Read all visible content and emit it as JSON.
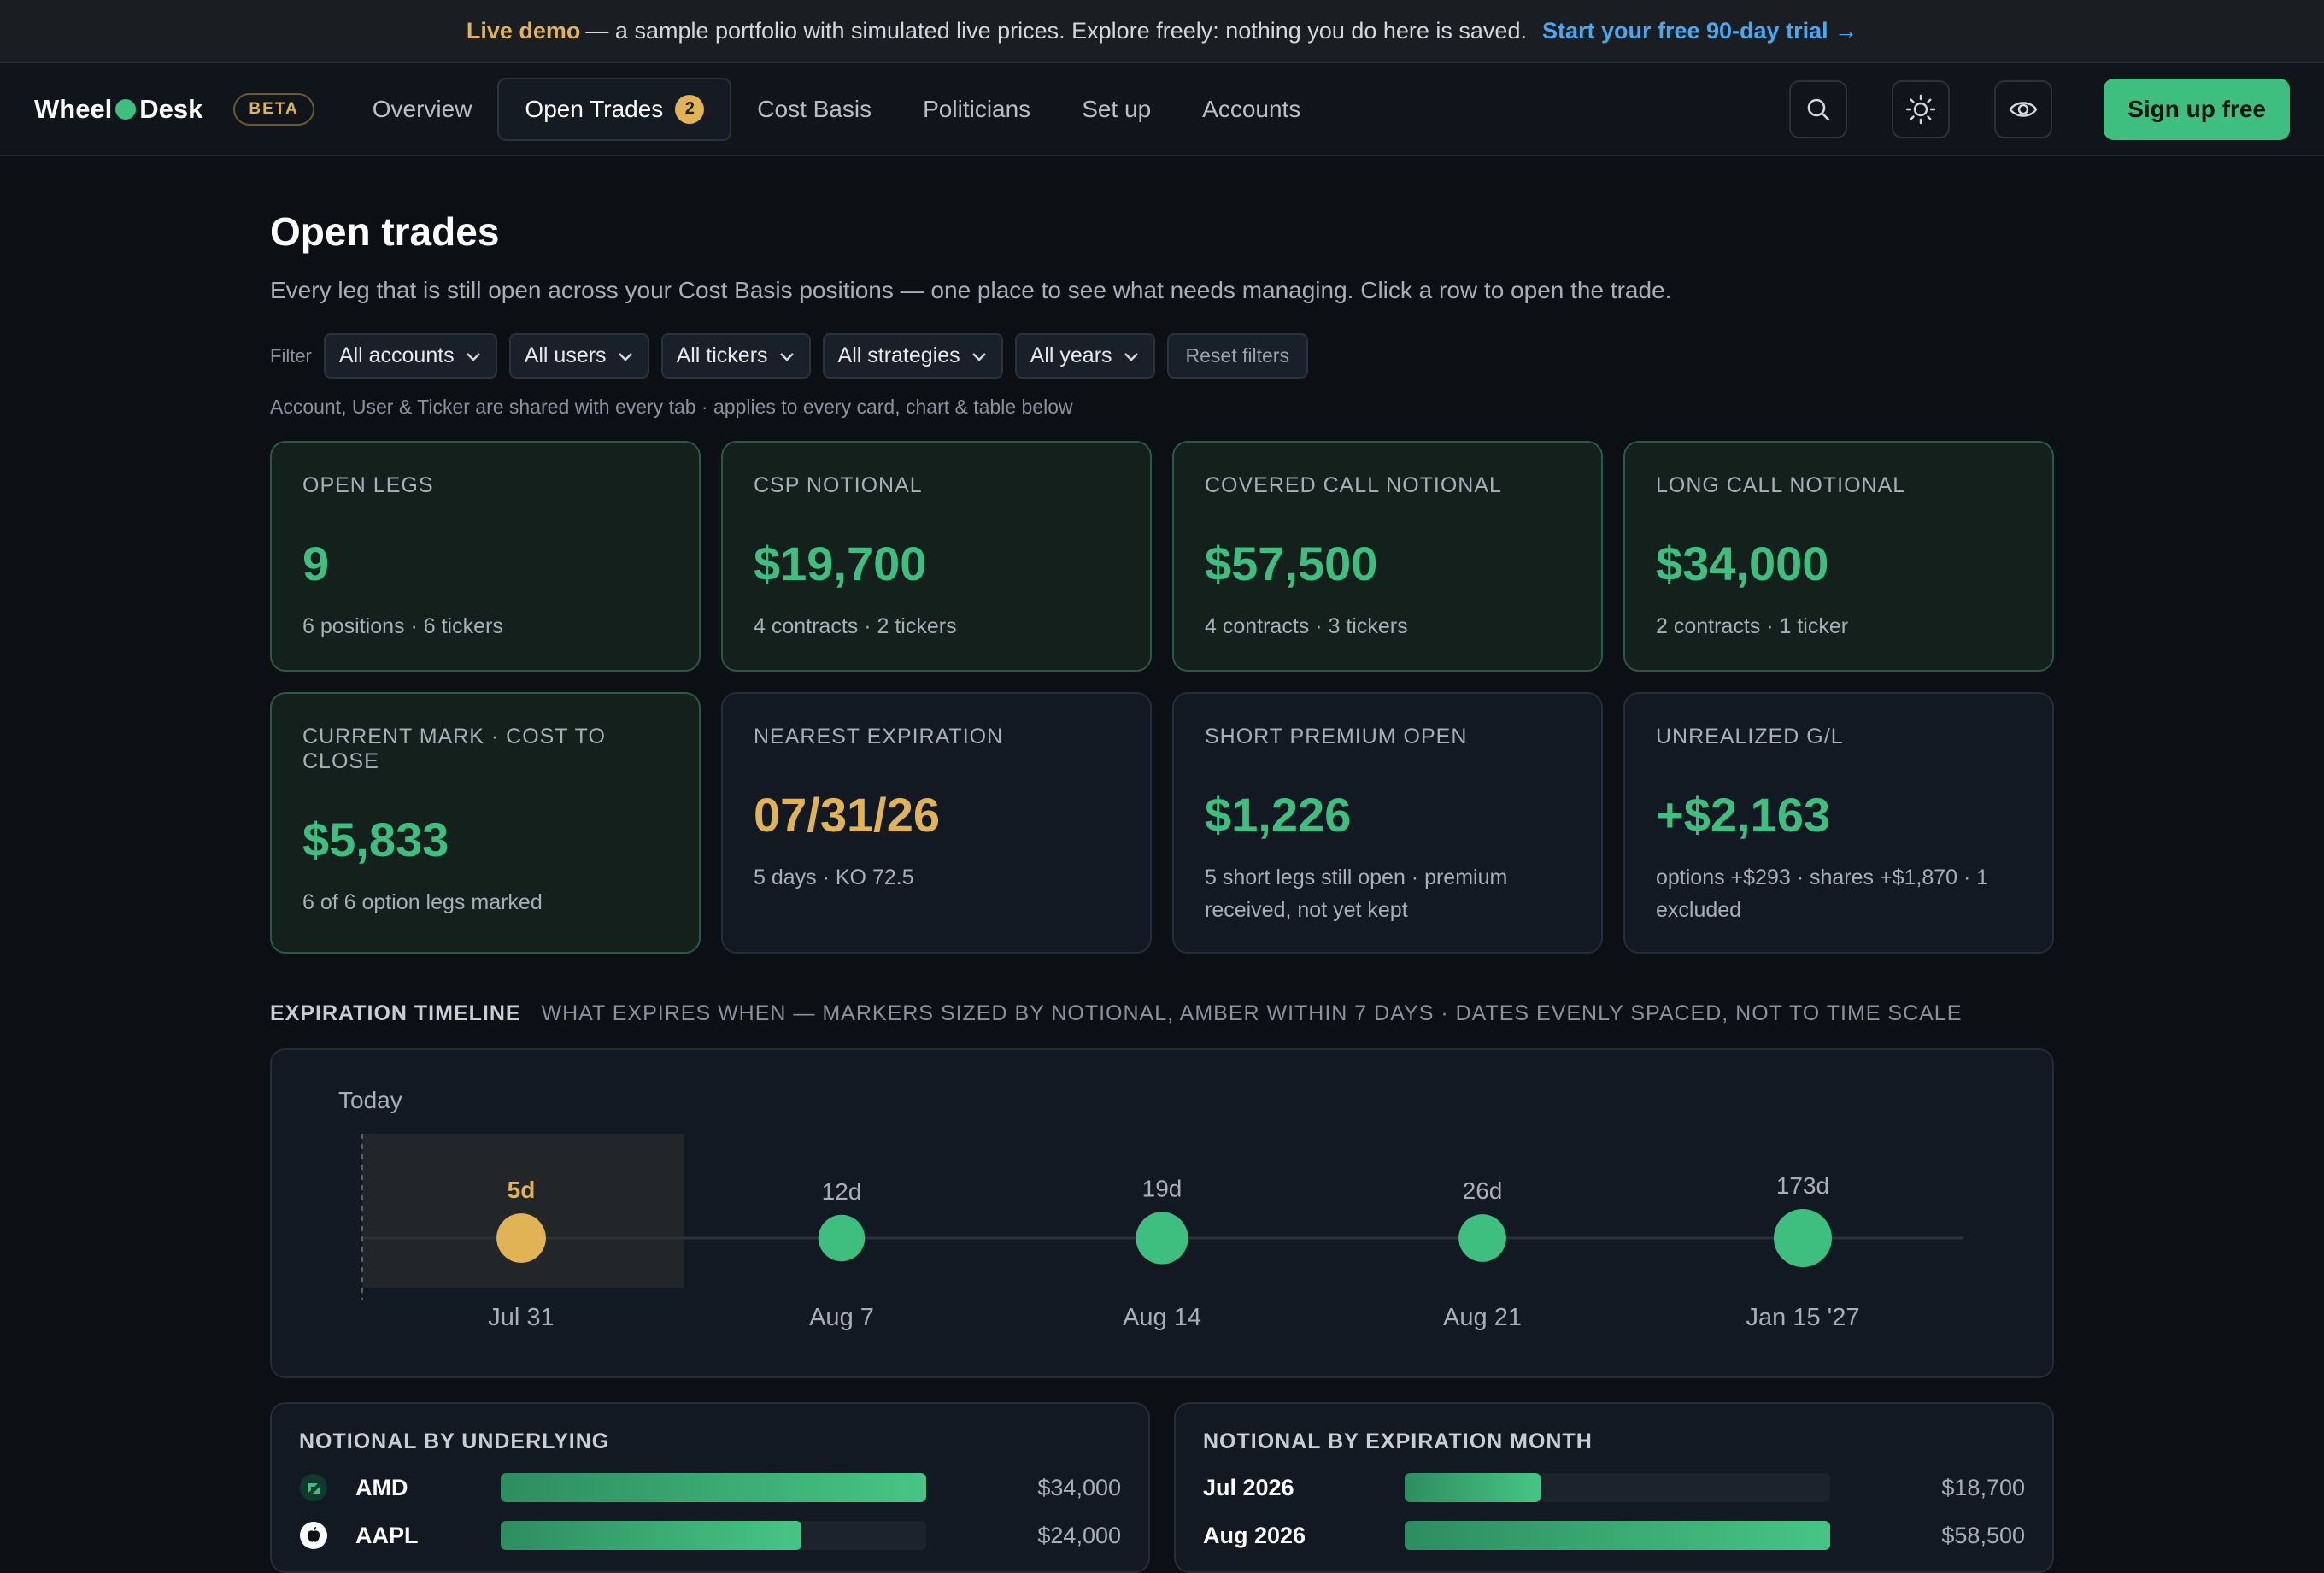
{
  "banner": {
    "live": "Live demo",
    "message": "— a sample portfolio with simulated live prices. Explore freely: nothing you do here is saved.",
    "cta": "Start your free 90-day trial →"
  },
  "nav": {
    "brand_left": "Wheel",
    "brand_right": "Desk",
    "beta": "BETA",
    "links": [
      "Overview",
      "Open Trades",
      "Cost Basis",
      "Politicians",
      "Set up",
      "Accounts"
    ],
    "open_trades_count": "2",
    "signup": "Sign up free",
    "icons": [
      "search-icon",
      "sun-icon",
      "eye-icon"
    ]
  },
  "page": {
    "title": "Open trades",
    "subtitle": "Every leg that is still open across your Cost Basis positions — one place to see what needs managing. Click a row to open the trade."
  },
  "filters": {
    "label": "Filter",
    "selects": [
      "All accounts",
      "All users",
      "All tickers",
      "All strategies",
      "All years"
    ],
    "reset": "Reset filters",
    "note": "Account, User & Ticker are shared with every tab · applies to every card, chart & table below"
  },
  "cards": [
    {
      "label": "OPEN LEGS",
      "value": "9",
      "sub": "6 positions · 6 tickers"
    },
    {
      "label": "CSP NOTIONAL",
      "value": "$19,700",
      "sub": "4 contracts · 2 tickers"
    },
    {
      "label": "COVERED CALL NOTIONAL",
      "value": "$57,500",
      "sub": "4 contracts · 3 tickers"
    },
    {
      "label": "LONG CALL NOTIONAL",
      "value": "$34,000",
      "sub": "2 contracts · 1 ticker"
    },
    {
      "label": "CURRENT MARK · COST TO CLOSE",
      "value": "$5,833",
      "sub": "6 of 6 option legs marked"
    },
    {
      "label": "NEAREST EXPIRATION",
      "value": "07/31/26",
      "sub": "5 days · KO 72.5"
    },
    {
      "label": "SHORT PREMIUM OPEN",
      "value": "$1,226",
      "sub": "5 short legs still open · premium received, not yet kept"
    },
    {
      "label": "UNREALIZED G/L",
      "value": "+$2,163",
      "sub": "options +$293 · shares +$1,870 · 1 excluded"
    }
  ],
  "timeline": {
    "title": "EXPIRATION TIMELINE",
    "desc": "WHAT EXPIRES WHEN — MARKERS SIZED BY NOTIONAL, AMBER WITHIN 7 DAYS · DATES EVENLY SPACED, NOT TO TIME SCALE",
    "today_label": "Today",
    "markers": [
      {
        "days": "5d",
        "date": "Jul 31",
        "amber": true,
        "size": 0.85
      },
      {
        "days": "12d",
        "date": "Aug 7",
        "amber": false,
        "size": 0.8
      },
      {
        "days": "19d",
        "date": "Aug 14",
        "amber": false,
        "size": 0.9
      },
      {
        "days": "26d",
        "date": "Aug 21",
        "amber": false,
        "size": 0.82
      },
      {
        "days": "173d",
        "date": "Jan 15 '27",
        "amber": false,
        "size": 1.0
      }
    ],
    "colors": {
      "amber": "#e2b354",
      "green": "#3fbf7f"
    }
  },
  "underlying": {
    "title": "NOTIONAL BY UNDERLYING",
    "rows": [
      {
        "name": "AMD",
        "amount": "$34,000",
        "value": 34000,
        "icon": "amd-logo-icon"
      },
      {
        "name": "AAPL",
        "amount": "$24,000",
        "value": 24000,
        "icon": "apple-logo-icon"
      }
    ],
    "max": 34000
  },
  "by_month": {
    "title": "NOTIONAL BY EXPIRATION MONTH",
    "rows": [
      {
        "name": "Jul 2026",
        "amount": "$18,700",
        "value": 18700
      },
      {
        "name": "Aug 2026",
        "amount": "$58,500",
        "value": 58500
      }
    ],
    "max": 58500
  }
}
